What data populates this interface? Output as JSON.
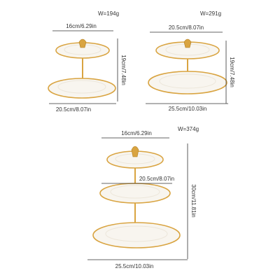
{
  "stands": [
    {
      "weight": "W=194g",
      "top_width": "16cm/6.29in",
      "height": "19cm/7.48in",
      "bottom_width": "20.5cm/8.07in"
    },
    {
      "weight": "W=291g",
      "top_width": "20.5cm/8.07in",
      "height": "19cm/7.48in",
      "bottom_width": "25.5cm/10.03in"
    },
    {
      "weight": "W=374g",
      "top_width": "16cm/6.29in",
      "middle_width": "20.5cm/8.07in",
      "height": "30cm/11.81in",
      "bottom_width": "25.5cm/10.03in"
    }
  ]
}
